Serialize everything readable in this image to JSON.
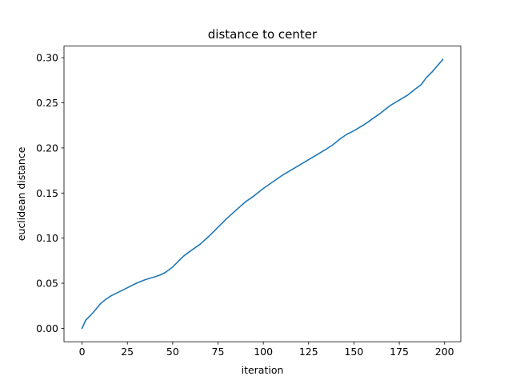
{
  "chart_data": {
    "type": "line",
    "title": "distance to center",
    "xlabel": "iteration",
    "ylabel": "euclidean distance",
    "xlim": [
      -9.95,
      208.95
    ],
    "ylim": [
      -0.0149,
      0.3129
    ],
    "xticks": [
      0,
      25,
      50,
      75,
      100,
      125,
      150,
      175,
      200
    ],
    "yticks": [
      0.0,
      0.05,
      0.1,
      0.15,
      0.2,
      0.25,
      0.3
    ],
    "ytick_labels": [
      "0.00",
      "0.05",
      "0.10",
      "0.15",
      "0.20",
      "0.25",
      "0.30"
    ],
    "grid": false,
    "legend": "none",
    "series": [
      {
        "color": "#1f77b4",
        "x": [
          0,
          2,
          5,
          8,
          10,
          13,
          16,
          20,
          25,
          30,
          35,
          40,
          43,
          46,
          50,
          53,
          56,
          60,
          65,
          70,
          75,
          80,
          85,
          90,
          95,
          100,
          105,
          110,
          115,
          120,
          125,
          130,
          135,
          138,
          140,
          143,
          146,
          150,
          155,
          158,
          160,
          165,
          170,
          175,
          180,
          183,
          187,
          190,
          193,
          196,
          199
        ],
        "y": [
          0.0,
          0.009,
          0.015,
          0.022,
          0.027,
          0.032,
          0.036,
          0.04,
          0.045,
          0.05,
          0.054,
          0.057,
          0.059,
          0.062,
          0.068,
          0.074,
          0.08,
          0.086,
          0.093,
          0.102,
          0.112,
          0.122,
          0.131,
          0.14,
          0.147,
          0.155,
          0.162,
          0.169,
          0.175,
          0.181,
          0.187,
          0.193,
          0.199,
          0.203,
          0.206,
          0.211,
          0.215,
          0.219,
          0.225,
          0.229,
          0.232,
          0.239,
          0.247,
          0.253,
          0.259,
          0.264,
          0.27,
          0.278,
          0.284,
          0.291,
          0.298
        ]
      }
    ]
  }
}
